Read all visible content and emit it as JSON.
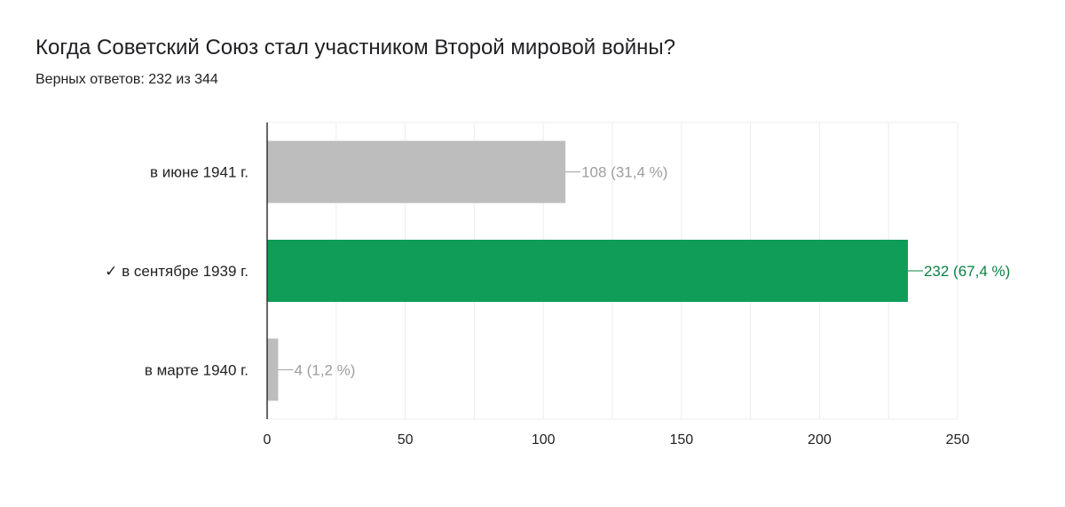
{
  "question": {
    "title": "Когда Советский Союз стал участником Второй мировой войны?",
    "subtitle": "Верных ответов: 232 из 344"
  },
  "colors": {
    "correct": "#0f9d58",
    "correct_text": "#0b8043",
    "incorrect": "#bdbdbd",
    "incorrect_text": "#9e9e9e",
    "grid": "#ececec",
    "axis": "#333333",
    "label": "#222222"
  },
  "chart_data": {
    "type": "bar",
    "orientation": "horizontal",
    "title": "Когда Советский Союз стал участником Второй мировой войны?",
    "categories": [
      "в июне 1941 г.",
      "✓ в сентябре 1939 г.",
      "в марте 1940 г."
    ],
    "values": [
      108,
      232,
      4
    ],
    "data_labels": [
      "108 (31,4 %)",
      "232 (67,4 %)",
      "4 (1,2 %)"
    ],
    "correct": [
      false,
      true,
      false
    ],
    "xlim": [
      0,
      250
    ],
    "xticks": [
      0,
      50,
      100,
      150,
      200,
      250
    ],
    "grid": true,
    "legend": "none"
  }
}
